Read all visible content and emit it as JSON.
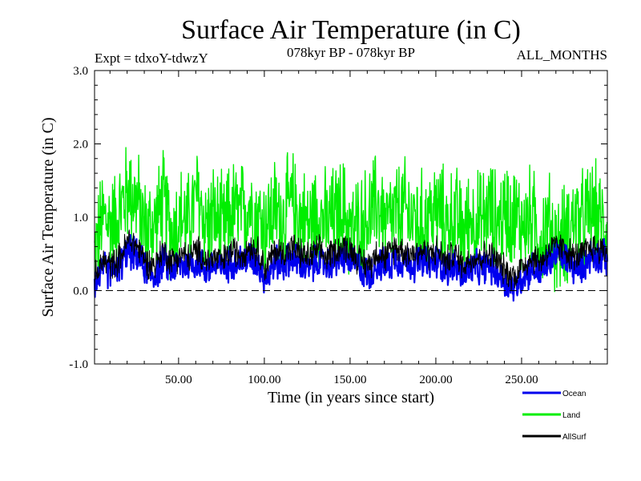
{
  "chart_data": {
    "type": "line",
    "title": "Surface Air Temperature (in C)",
    "subtitle_left": "Expt = tdxoY-tdwzY",
    "subtitle_center": "078kyr BP - 078kyr BP",
    "subtitle_right": "ALL_MONTHS",
    "xlabel": "Time (in years since start)",
    "ylabel": "Surface Air Temperature (in C)",
    "xlim": [
      1,
      300
    ],
    "ylim": [
      -1.0,
      3.0
    ],
    "x_ticks": [
      50,
      100,
      150,
      200,
      250
    ],
    "x_tick_labels": [
      "50.00",
      "100.00",
      "150.00",
      "200.00",
      "250.00"
    ],
    "y_ticks": [
      -1,
      0,
      1,
      2,
      3
    ],
    "y_tick_labels": [
      "-1.0",
      "0.0",
      "1.0",
      "2.0",
      "3.0"
    ],
    "reference_line_y": 0.0,
    "legend_position": "bottom-right, below plot",
    "series": [
      {
        "name": "Land",
        "color": "#00ee00",
        "x_start": 1,
        "x_step": 5,
        "values": [
          0.5,
          1.0,
          0.9,
          1.1,
          1.4,
          1.2,
          0.8,
          0.9,
          1.2,
          0.8,
          1.0,
          0.9,
          1.3,
          0.9,
          1.0,
          0.8,
          1.1,
          1.0,
          1.2,
          1.0,
          0.9,
          1.1,
          1.0,
          1.2,
          1.0,
          0.9,
          1.1,
          0.9,
          1.0,
          1.1,
          0.8,
          0.9,
          1.0,
          1.2,
          0.9,
          1.0,
          1.1,
          1.0,
          0.9,
          1.0,
          1.1,
          0.9,
          1.0,
          0.8,
          1.0,
          0.9,
          1.1,
          0.9,
          1.1,
          1.0,
          0.9,
          1.0,
          0.7,
          0.9,
          0.6,
          0.8,
          1.0,
          0.9,
          1.1,
          0.9
        ],
        "amplitude": 0.85
      },
      {
        "name": "Ocean",
        "color": "#0000ee",
        "x_start": 1,
        "x_step": 5,
        "values": [
          0.1,
          0.3,
          0.25,
          0.35,
          0.55,
          0.45,
          0.3,
          0.2,
          0.4,
          0.3,
          0.35,
          0.35,
          0.4,
          0.3,
          0.35,
          0.3,
          0.4,
          0.4,
          0.45,
          0.4,
          0.15,
          0.4,
          0.35,
          0.45,
          0.35,
          0.3,
          0.4,
          0.35,
          0.4,
          0.45,
          0.4,
          0.3,
          0.2,
          0.4,
          0.3,
          0.45,
          0.4,
          0.35,
          0.4,
          0.35,
          0.4,
          0.3,
          0.35,
          0.2,
          0.3,
          0.3,
          0.35,
          0.25,
          0.1,
          0.05,
          0.2,
          0.3,
          0.25,
          0.4,
          0.5,
          0.45,
          0.3,
          0.35,
          0.5,
          0.45
        ],
        "amplitude": 0.28
      },
      {
        "name": "AllSurf",
        "color": "#000000",
        "x_start": 1,
        "x_step": 5,
        "values": [
          0.15,
          0.4,
          0.35,
          0.45,
          0.7,
          0.6,
          0.4,
          0.35,
          0.55,
          0.4,
          0.5,
          0.45,
          0.55,
          0.4,
          0.45,
          0.4,
          0.55,
          0.5,
          0.6,
          0.55,
          0.3,
          0.55,
          0.5,
          0.6,
          0.5,
          0.45,
          0.55,
          0.45,
          0.55,
          0.6,
          0.55,
          0.4,
          0.35,
          0.55,
          0.45,
          0.6,
          0.55,
          0.5,
          0.55,
          0.5,
          0.55,
          0.4,
          0.5,
          0.35,
          0.45,
          0.45,
          0.5,
          0.4,
          0.25,
          0.2,
          0.35,
          0.45,
          0.4,
          0.55,
          0.6,
          0.55,
          0.45,
          0.5,
          0.6,
          0.55
        ],
        "amplitude": 0.25
      }
    ]
  }
}
